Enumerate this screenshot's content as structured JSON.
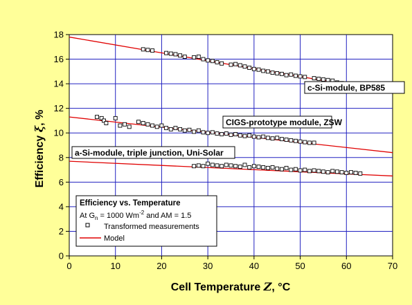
{
  "chart_data": {
    "type": "scatter",
    "xlabel_main": "Cell Temperature ",
    "xlabel_symbol": "Z",
    "xlabel_unit": ", °C",
    "ylabel_main": "Efficiency ",
    "ylabel_symbol": "ξ",
    "ylabel_unit": ", %",
    "xlim": [
      0,
      70
    ],
    "ylim": [
      0,
      18
    ],
    "x_ticks": [
      "0",
      "10",
      "20",
      "30",
      "40",
      "50",
      "60",
      "70"
    ],
    "y_ticks": [
      "0",
      "2",
      "4",
      "6",
      "8",
      "10",
      "12",
      "14",
      "16",
      "18"
    ],
    "grid": true,
    "legend_placement": "bottom-left",
    "colors": {
      "background": "#ffff99",
      "plot_area": "#ffffff",
      "grid": "#2020c0",
      "model": "#e00000",
      "marker_fill": "#ffffff",
      "marker_stroke": "#000000"
    },
    "legend": {
      "title": "Efficiency vs. Temperature",
      "condition_pre": "At G",
      "condition_sub": "n",
      "condition_mid": " = 1000 Wm",
      "condition_sup": "-2",
      "condition_post": " and AM = 1.5",
      "entries": [
        "Transformed measurements",
        "Model"
      ]
    },
    "series": [
      {
        "name": "c-Si-module, BP585",
        "model": [
          [
            0,
            17.8
          ],
          [
            70,
            13.3
          ]
        ],
        "points": [
          [
            16,
            16.8
          ],
          [
            17,
            16.75
          ],
          [
            18,
            16.7
          ],
          [
            21,
            16.5
          ],
          [
            22,
            16.45
          ],
          [
            23,
            16.4
          ],
          [
            24,
            16.3
          ],
          [
            25,
            16.2
          ],
          [
            27,
            16.15
          ],
          [
            28,
            16.2
          ],
          [
            29,
            16.0
          ],
          [
            30,
            15.9
          ],
          [
            31,
            15.85
          ],
          [
            32,
            15.75
          ],
          [
            33,
            15.65
          ],
          [
            35,
            15.55
          ],
          [
            36,
            15.6
          ],
          [
            37,
            15.5
          ],
          [
            38,
            15.4
          ],
          [
            39,
            15.3
          ],
          [
            40,
            15.2
          ],
          [
            41,
            15.15
          ],
          [
            42,
            15.05
          ],
          [
            43,
            15.0
          ],
          [
            44,
            14.9
          ],
          [
            45,
            14.85
          ],
          [
            46,
            14.8
          ],
          [
            47,
            14.7
          ],
          [
            48,
            14.75
          ],
          [
            49,
            14.65
          ],
          [
            50,
            14.6
          ],
          [
            51,
            14.55
          ],
          [
            53,
            14.45
          ],
          [
            54,
            14.4
          ],
          [
            55,
            14.35
          ],
          [
            56,
            14.3
          ],
          [
            57,
            14.25
          ],
          [
            58,
            14.1
          ],
          [
            59,
            14.05
          ],
          [
            60,
            14.0
          ],
          [
            61,
            13.95
          ],
          [
            62,
            13.95
          ],
          [
            63,
            13.9
          ]
        ]
      },
      {
        "name": "CIGS-prototype module, ZSW",
        "model": [
          [
            0,
            11.3
          ],
          [
            70,
            8.4
          ]
        ],
        "points": [
          [
            6,
            11.3
          ],
          [
            7,
            11.2
          ],
          [
            7.5,
            11.0
          ],
          [
            8,
            10.8
          ],
          [
            10,
            11.2
          ],
          [
            11,
            10.6
          ],
          [
            12,
            10.7
          ],
          [
            13,
            10.5
          ],
          [
            15,
            10.9
          ],
          [
            16,
            10.8
          ],
          [
            17,
            10.7
          ],
          [
            18,
            10.6
          ],
          [
            19,
            10.5
          ],
          [
            20,
            10.6
          ],
          [
            21,
            10.4
          ],
          [
            22,
            10.3
          ],
          [
            23,
            10.4
          ],
          [
            24,
            10.3
          ],
          [
            25,
            10.2
          ],
          [
            26,
            10.25
          ],
          [
            27,
            10.1
          ],
          [
            28,
            10.2
          ],
          [
            29,
            10.05
          ],
          [
            30,
            10.0
          ],
          [
            31,
            10.05
          ],
          [
            32,
            9.95
          ],
          [
            33,
            9.9
          ],
          [
            34,
            9.95
          ],
          [
            35,
            9.85
          ],
          [
            36,
            9.9
          ],
          [
            37,
            9.8
          ],
          [
            38,
            9.75
          ],
          [
            39,
            9.8
          ],
          [
            40,
            9.7
          ],
          [
            41,
            9.65
          ],
          [
            42,
            9.7
          ],
          [
            43,
            9.6
          ],
          [
            44,
            9.55
          ],
          [
            45,
            9.6
          ],
          [
            46,
            9.5
          ],
          [
            47,
            9.45
          ],
          [
            48,
            9.4
          ],
          [
            49,
            9.35
          ],
          [
            50,
            9.3
          ],
          [
            51,
            9.25
          ],
          [
            52,
            9.2
          ],
          [
            53,
            9.2
          ]
        ]
      },
      {
        "name": "a-Si-module, triple junction, Uni-Solar",
        "model": [
          [
            0,
            7.7
          ],
          [
            70,
            6.5
          ]
        ],
        "points": [
          [
            27,
            7.3
          ],
          [
            28,
            7.35
          ],
          [
            29,
            7.3
          ],
          [
            30,
            7.5
          ],
          [
            31,
            7.4
          ],
          [
            32,
            7.35
          ],
          [
            33,
            7.3
          ],
          [
            34,
            7.4
          ],
          [
            35,
            7.35
          ],
          [
            36,
            7.3
          ],
          [
            37,
            7.25
          ],
          [
            38,
            7.4
          ],
          [
            39,
            7.2
          ],
          [
            40,
            7.3
          ],
          [
            41,
            7.25
          ],
          [
            42,
            7.2
          ],
          [
            43,
            7.15
          ],
          [
            44,
            7.2
          ],
          [
            45,
            7.1
          ],
          [
            46,
            7.05
          ],
          [
            47,
            7.15
          ],
          [
            48,
            7.0
          ],
          [
            49,
            7.05
          ],
          [
            50,
            6.95
          ],
          [
            51,
            7.0
          ],
          [
            52,
            6.9
          ],
          [
            53,
            6.95
          ],
          [
            54,
            6.9
          ],
          [
            55,
            6.85
          ],
          [
            56,
            6.8
          ],
          [
            57,
            6.9
          ],
          [
            58,
            6.85
          ],
          [
            59,
            6.8
          ],
          [
            60,
            6.75
          ],
          [
            61,
            6.8
          ],
          [
            62,
            6.75
          ],
          [
            63,
            6.7
          ]
        ]
      }
    ]
  }
}
